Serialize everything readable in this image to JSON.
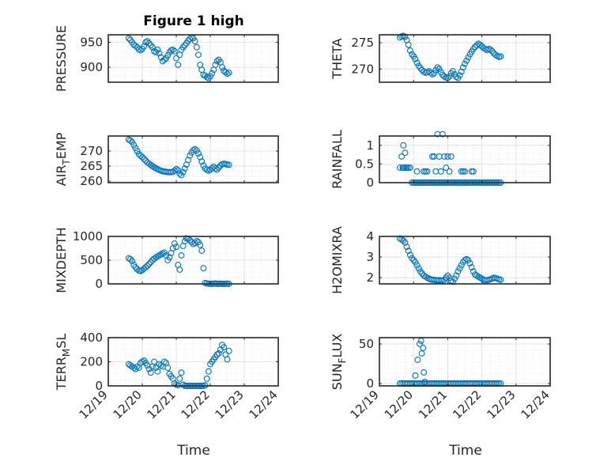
{
  "figure": {
    "title": "Figure 1 high",
    "xlabel": "Time"
  },
  "colors": {
    "marker": "#0072BD",
    "axis": "#262626",
    "grid": "#dcdcdc"
  },
  "chart_data": [
    {
      "id": "pressure",
      "type": "scatter",
      "ylabel": "PRESSURE",
      "ylim": [
        870,
        965
      ],
      "yticks": [
        900,
        950
      ],
      "ytick_labels": [
        "900",
        "950"
      ],
      "xlim": [
        0,
        5
      ],
      "grid": "on",
      "x": [
        0.6,
        0.65,
        0.7,
        0.75,
        0.8,
        0.85,
        0.9,
        0.95,
        1.0,
        1.05,
        1.1,
        1.15,
        1.2,
        1.25,
        1.3,
        1.35,
        1.4,
        1.45,
        1.5,
        1.55,
        1.6,
        1.65,
        1.7,
        1.75,
        1.8,
        1.85,
        1.9,
        1.95,
        2.0,
        2.05,
        2.1,
        2.15,
        2.2,
        2.25,
        2.3,
        2.35,
        2.4,
        2.45,
        2.5,
        2.55,
        2.6,
        2.65,
        2.7,
        2.75,
        2.8,
        2.85,
        2.9,
        2.95,
        3.0,
        3.05,
        3.1,
        3.15,
        3.2,
        3.25,
        3.3,
        3.35,
        3.4,
        3.45,
        3.5,
        3.55
      ],
      "y": [
        958,
        955,
        950,
        945,
        943,
        940,
        936,
        934,
        937,
        942,
        950,
        952,
        948,
        944,
        940,
        932,
        930,
        935,
        928,
        920,
        912,
        915,
        918,
        924,
        930,
        934,
        935,
        932,
        918,
        905,
        925,
        935,
        940,
        944,
        948,
        953,
        957,
        960,
        958,
        952,
        940,
        925,
        905,
        895,
        885,
        883,
        880,
        878,
        882,
        888,
        895,
        905,
        912,
        915,
        910,
        900,
        893,
        890,
        887,
        889
      ]
    },
    {
      "id": "theta",
      "type": "scatter",
      "ylabel": "THETA",
      "ylim": [
        267.5,
        276.5
      ],
      "yticks": [
        270,
        275
      ],
      "ytick_labels": [
        "270",
        "275"
      ],
      "xlim": [
        0,
        5
      ],
      "grid": "on",
      "x": [
        0.6,
        0.65,
        0.7,
        0.75,
        0.8,
        0.85,
        0.9,
        0.95,
        1.0,
        1.05,
        1.1,
        1.15,
        1.2,
        1.25,
        1.3,
        1.35,
        1.4,
        1.45,
        1.5,
        1.55,
        1.6,
        1.65,
        1.7,
        1.75,
        1.8,
        1.85,
        1.9,
        1.95,
        2.0,
        2.05,
        2.1,
        2.15,
        2.2,
        2.25,
        2.3,
        2.35,
        2.4,
        2.45,
        2.5,
        2.55,
        2.6,
        2.65,
        2.7,
        2.75,
        2.8,
        2.85,
        2.9,
        2.95,
        3.0,
        3.05,
        3.1,
        3.15,
        3.2,
        3.25,
        3.3,
        3.35,
        3.4,
        3.45,
        3.5,
        3.55
      ],
      "y": [
        276.0,
        276.2,
        276.3,
        276.1,
        275.5,
        274.6,
        273.5,
        272.8,
        272.4,
        271.9,
        271.2,
        270.6,
        270.2,
        269.8,
        269.5,
        269.3,
        269.4,
        269.6,
        269.3,
        269.0,
        269.2,
        269.8,
        270.3,
        270.0,
        269.4,
        268.9,
        268.6,
        268.4,
        268.3,
        268.6,
        269.2,
        269.6,
        269.0,
        268.5,
        268.3,
        268.8,
        269.5,
        270.3,
        271.0,
        271.6,
        272.2,
        272.8,
        273.3,
        273.8,
        274.2,
        274.5,
        274.8,
        274.6,
        274.3,
        274.0,
        273.8,
        273.6,
        273.8,
        273.7,
        273.4,
        273.0,
        272.7,
        272.5,
        272.3,
        272.4
      ]
    },
    {
      "id": "air_temp",
      "type": "scatter",
      "ylabel": "AIR_TEMP",
      "ylabel_parts": [
        "AIR",
        "T",
        "EMP"
      ],
      "ylim": [
        259.5,
        275
      ],
      "yticks": [
        260,
        265,
        270
      ],
      "ytick_labels": [
        "260",
        "265",
        "270"
      ],
      "xlim": [
        0,
        5
      ],
      "grid": "on",
      "x": [
        0.6,
        0.65,
        0.7,
        0.75,
        0.8,
        0.85,
        0.9,
        0.95,
        1.0,
        1.05,
        1.1,
        1.15,
        1.2,
        1.25,
        1.3,
        1.35,
        1.4,
        1.45,
        1.5,
        1.55,
        1.6,
        1.65,
        1.7,
        1.75,
        1.8,
        1.85,
        1.9,
        1.95,
        2.0,
        2.05,
        2.1,
        2.15,
        2.2,
        2.25,
        2.3,
        2.35,
        2.4,
        2.45,
        2.5,
        2.55,
        2.6,
        2.65,
        2.7,
        2.75,
        2.8,
        2.85,
        2.9,
        2.95,
        3.0,
        3.05,
        3.1,
        3.15,
        3.2,
        3.25,
        3.3,
        3.35,
        3.4,
        3.45,
        3.5,
        3.55
      ],
      "y": [
        273.8,
        273.5,
        273.0,
        272.0,
        271.0,
        270.0,
        269.0,
        268.4,
        268.0,
        267.4,
        266.8,
        266.2,
        265.8,
        265.4,
        265.0,
        264.6,
        264.3,
        264.0,
        263.7,
        263.5,
        263.3,
        263.2,
        263.1,
        263.0,
        263.0,
        263.0,
        263.1,
        263.5,
        264.0,
        263.6,
        262.5,
        262.0,
        263.0,
        264.2,
        265.5,
        267.0,
        268.5,
        269.5,
        270.3,
        270.6,
        270.2,
        269.2,
        268.0,
        266.5,
        265.2,
        264.2,
        263.8,
        263.5,
        263.8,
        264.3,
        264.8,
        264.2,
        263.8,
        264.5,
        265.2,
        265.6,
        265.8,
        265.7,
        265.5,
        265.4
      ]
    },
    {
      "id": "rainfall",
      "type": "scatter",
      "ylabel": "RAINFALL",
      "ylim": [
        0,
        1.25
      ],
      "yticks": [
        0,
        0.5,
        1
      ],
      "ytick_labels": [
        "0",
        "0.5",
        "1"
      ],
      "xlim": [
        0,
        5
      ],
      "grid": "on",
      "x": [
        0.6,
        0.65,
        0.7,
        0.75,
        0.8,
        0.85,
        0.9,
        0.95,
        1.0,
        1.05,
        1.1,
        1.15,
        1.2,
        1.25,
        1.3,
        1.35,
        1.4,
        1.45,
        1.5,
        1.55,
        1.6,
        1.65,
        1.7,
        1.75,
        1.8,
        1.85,
        1.9,
        1.95,
        2.0,
        2.05,
        2.1,
        2.15,
        2.2,
        2.25,
        2.3,
        2.35,
        2.4,
        2.45,
        2.5,
        2.55,
        2.6,
        2.65,
        2.7,
        2.75,
        2.8,
        2.85,
        2.9,
        2.95,
        3.0,
        3.05,
        3.1,
        3.15,
        3.2,
        3.25,
        3.3,
        3.35,
        3.4,
        3.45,
        3.5,
        3.55,
        0.68,
        0.7,
        0.72,
        0.78,
        1.1,
        1.3,
        1.35,
        1.4,
        1.55,
        1.6,
        1.65,
        1.7,
        1.75,
        1.8,
        1.85,
        1.9,
        1.95,
        2.0,
        2.05,
        2.1,
        2.4,
        2.45,
        2.5,
        2.7,
        2.75
      ],
      "y": [
        0.4,
        0.7,
        1.0,
        0.8,
        0.4,
        0.4,
        0.4,
        0.0,
        0.0,
        0.0,
        0.0,
        0.0,
        0.0,
        0.0,
        0.0,
        0.0,
        0.0,
        0.0,
        0.0,
        0.0,
        0.0,
        0.0,
        0.0,
        0.0,
        0.0,
        0.0,
        0.0,
        0.0,
        0.0,
        0.0,
        0.0,
        0.0,
        0.0,
        0.0,
        0.0,
        0.0,
        0.0,
        0.0,
        0.0,
        0.0,
        0.0,
        0.0,
        0.0,
        0.0,
        0.0,
        0.0,
        0.0,
        0.0,
        0.0,
        0.0,
        0.0,
        0.0,
        0.0,
        0.0,
        0.0,
        0.0,
        0.0,
        0.0,
        0.0,
        0.0,
        0.4,
        0.4,
        0.4,
        0.4,
        0.3,
        0.3,
        0.3,
        0.3,
        0.7,
        0.7,
        0.3,
        1.3,
        0.7,
        0.3,
        1.3,
        0.7,
        0.4,
        0.7,
        0.3,
        0.7,
        0.3,
        0.3,
        0.3,
        0.3,
        0.3
      ]
    },
    {
      "id": "mixdepth",
      "type": "scatter",
      "ylabel": "MIXDEPTH",
      "ylim": [
        0,
        1000
      ],
      "yticks": [
        0,
        500,
        1000
      ],
      "ytick_labels": [
        "0",
        "500",
        "1000"
      ],
      "xlim": [
        0,
        5
      ],
      "grid": "on",
      "x": [
        0.6,
        0.65,
        0.7,
        0.75,
        0.8,
        0.85,
        0.9,
        0.95,
        1.0,
        1.05,
        1.1,
        1.15,
        1.2,
        1.25,
        1.3,
        1.35,
        1.4,
        1.45,
        1.5,
        1.55,
        1.6,
        1.65,
        1.7,
        1.75,
        1.8,
        1.85,
        1.9,
        1.95,
        2.0,
        2.05,
        2.1,
        2.15,
        2.2,
        2.25,
        2.3,
        2.35,
        2.4,
        2.45,
        2.5,
        2.55,
        2.6,
        2.65,
        2.7,
        2.75,
        2.8,
        2.85,
        2.9,
        2.95,
        3.0,
        3.05,
        3.1,
        3.15,
        3.2,
        3.25,
        3.3,
        3.35,
        3.4,
        3.45,
        3.5,
        3.55
      ],
      "y": [
        540,
        520,
        480,
        400,
        350,
        310,
        280,
        270,
        290,
        320,
        350,
        380,
        420,
        460,
        500,
        530,
        560,
        580,
        600,
        620,
        640,
        660,
        600,
        500,
        560,
        650,
        750,
        850,
        780,
        400,
        300,
        600,
        800,
        900,
        960,
        950,
        920,
        880,
        840,
        860,
        900,
        880,
        820,
        700,
        330,
        20,
        10,
        5,
        0,
        0,
        5,
        10,
        0,
        0,
        5,
        0,
        0,
        0,
        5,
        0
      ]
    },
    {
      "id": "h2omixra",
      "type": "scatter",
      "ylabel": "H2OMIXRA",
      "ylim": [
        1.7,
        4
      ],
      "yticks": [
        2,
        3,
        4
      ],
      "ytick_labels": [
        "2",
        "3",
        "4"
      ],
      "xlim": [
        0,
        5
      ],
      "grid": "on",
      "x": [
        0.6,
        0.65,
        0.7,
        0.75,
        0.8,
        0.85,
        0.9,
        0.95,
        1.0,
        1.05,
        1.1,
        1.15,
        1.2,
        1.25,
        1.3,
        1.35,
        1.4,
        1.45,
        1.5,
        1.55,
        1.6,
        1.65,
        1.7,
        1.75,
        1.8,
        1.85,
        1.9,
        1.95,
        2.0,
        2.05,
        2.1,
        2.15,
        2.2,
        2.25,
        2.3,
        2.35,
        2.4,
        2.45,
        2.5,
        2.55,
        2.6,
        2.65,
        2.7,
        2.75,
        2.8,
        2.85,
        2.9,
        2.95,
        3.0,
        3.05,
        3.1,
        3.15,
        3.2,
        3.25,
        3.3,
        3.35,
        3.4,
        3.45,
        3.5,
        3.55
      ],
      "y": [
        3.9,
        3.85,
        3.8,
        3.7,
        3.5,
        3.3,
        3.1,
        2.95,
        2.85,
        2.75,
        2.6,
        2.45,
        2.3,
        2.2,
        2.1,
        2.05,
        2.0,
        1.95,
        1.92,
        1.9,
        1.9,
        1.88,
        1.88,
        1.88,
        1.87,
        1.87,
        1.9,
        2.0,
        2.1,
        2.0,
        1.85,
        1.8,
        1.95,
        2.1,
        2.3,
        2.45,
        2.6,
        2.75,
        2.85,
        2.9,
        2.85,
        2.7,
        2.5,
        2.3,
        2.15,
        2.1,
        2.05,
        2.0,
        1.95,
        1.9,
        1.88,
        1.88,
        1.9,
        1.92,
        1.95,
        2.0,
        1.98,
        1.95,
        1.92,
        1.9
      ]
    },
    {
      "id": "terr_msl",
      "type": "scatter",
      "ylabel": "TERR_MSL",
      "ylabel_parts": [
        "TERR",
        "M",
        "SL"
      ],
      "ylim": [
        0,
        400
      ],
      "yticks": [
        0,
        200,
        400
      ],
      "ytick_labels": [
        "0",
        "200",
        "400"
      ],
      "xlim": [
        0,
        5
      ],
      "grid": "on",
      "x": [
        0.6,
        0.65,
        0.7,
        0.75,
        0.8,
        0.85,
        0.9,
        0.95,
        1.0,
        1.05,
        1.1,
        1.15,
        1.2,
        1.25,
        1.3,
        1.35,
        1.4,
        1.45,
        1.5,
        1.55,
        1.6,
        1.65,
        1.7,
        1.75,
        1.8,
        1.85,
        1.9,
        1.95,
        2.0,
        2.05,
        2.1,
        2.15,
        2.2,
        2.25,
        2.3,
        2.35,
        2.4,
        2.45,
        2.5,
        2.55,
        2.6,
        2.65,
        2.7,
        2.75,
        2.8,
        2.85,
        2.9,
        2.95,
        3.0,
        3.05,
        3.1,
        3.15,
        3.2,
        3.25,
        3.3,
        3.35,
        3.4,
        3.45,
        3.5,
        3.55
      ],
      "y": [
        180,
        170,
        160,
        150,
        140,
        160,
        150,
        190,
        200,
        210,
        190,
        170,
        140,
        110,
        160,
        200,
        150,
        120,
        180,
        170,
        160,
        200,
        190,
        150,
        100,
        80,
        60,
        20,
        10,
        5,
        60,
        110,
        10,
        0,
        0,
        0,
        0,
        0,
        0,
        0,
        0,
        0,
        0,
        0,
        0,
        5,
        60,
        120,
        180,
        200,
        220,
        240,
        260,
        270,
        300,
        340,
        320,
        260,
        220,
        290
      ]
    },
    {
      "id": "sun_flux",
      "type": "scatter",
      "ylabel": "SUN_FLUX",
      "ylabel_parts": [
        "SUN",
        "F",
        "LUX"
      ],
      "ylim": [
        -3,
        58
      ],
      "yticks": [
        0,
        50
      ],
      "ytick_labels": [
        "0",
        "50"
      ],
      "xlim": [
        0,
        5
      ],
      "grid": "on",
      "x": [
        0.6,
        0.65,
        0.7,
        0.75,
        0.8,
        0.85,
        0.9,
        0.95,
        1.0,
        1.05,
        1.1,
        1.15,
        1.2,
        1.25,
        1.3,
        1.35,
        1.4,
        1.45,
        1.5,
        1.55,
        1.6,
        1.65,
        1.7,
        1.75,
        1.8,
        1.85,
        1.9,
        1.95,
        2.0,
        2.05,
        2.1,
        2.15,
        2.2,
        2.25,
        2.3,
        2.35,
        2.4,
        2.45,
        2.5,
        2.55,
        2.6,
        2.65,
        2.7,
        2.75,
        2.8,
        2.85,
        2.9,
        2.95,
        3.0,
        3.05,
        3.1,
        3.15,
        3.2,
        3.25,
        3.3,
        3.35,
        3.4,
        3.45,
        3.5,
        3.55,
        1.05,
        1.12,
        1.18,
        1.22,
        1.24,
        1.28,
        1.3,
        1.33
      ],
      "y": [
        0,
        0,
        0,
        0,
        0,
        0,
        0,
        0,
        0,
        0,
        0,
        0,
        0,
        0,
        0,
        0,
        0,
        0,
        0,
        0,
        0,
        0,
        0,
        0,
        0,
        0,
        0,
        0,
        0,
        0,
        0,
        0,
        0,
        0,
        0,
        0,
        0,
        0,
        0,
        0,
        0,
        0,
        0,
        0,
        0,
        0,
        0,
        0,
        0,
        0,
        0,
        0,
        0,
        0,
        0,
        0,
        0,
        0,
        0,
        0,
        10,
        30,
        50,
        54,
        38,
        45,
        14,
        2
      ]
    }
  ],
  "x_axis": {
    "ticks": [
      0,
      1,
      2,
      3,
      4,
      5
    ],
    "tick_labels": [
      "12/19",
      "12/20",
      "12/21",
      "12/22",
      "12/23",
      "12/24"
    ]
  }
}
